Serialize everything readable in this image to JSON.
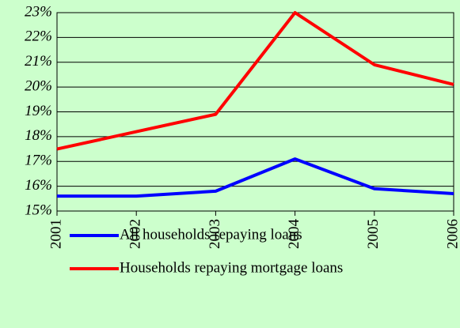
{
  "chart_data": {
    "type": "line",
    "x": [
      2001,
      2002,
      2003,
      2004,
      2005,
      2006
    ],
    "xlim": [
      2001,
      2006
    ],
    "series": [
      {
        "name": "All households repaying loans",
        "color": "#0000ff",
        "values": [
          15.6,
          15.6,
          15.8,
          17.1,
          15.9,
          15.7
        ]
      },
      {
        "name": "Households repaying mortgage loans",
        "color": "#ff0000",
        "values": [
          17.5,
          18.2,
          18.9,
          23.0,
          20.9,
          20.1
        ]
      }
    ],
    "ylim": [
      15,
      23
    ],
    "yticks": [
      {
        "value": 15,
        "label": "15%"
      },
      {
        "value": 16,
        "label": "16%"
      },
      {
        "value": 17,
        "label": "17%"
      },
      {
        "value": 18,
        "label": "18%"
      },
      {
        "value": 19,
        "label": "19%"
      },
      {
        "value": 20,
        "label": "20%"
      },
      {
        "value": 21,
        "label": "21%"
      },
      {
        "value": 22,
        "label": "22%"
      },
      {
        "value": 23,
        "label": "23%"
      }
    ],
    "grid": true,
    "legend": "bottom"
  }
}
